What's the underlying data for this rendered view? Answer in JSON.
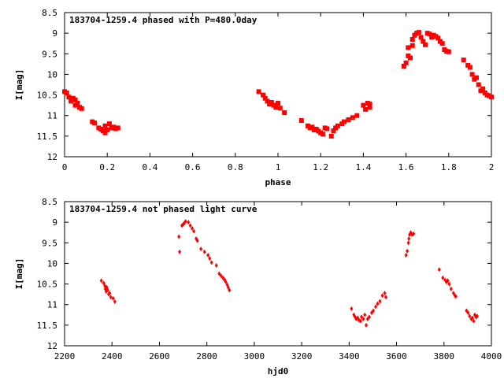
{
  "chart_data": [
    {
      "type": "scatter",
      "title": "183704-1259.4 phased with P=480.0day",
      "xlabel": "phase",
      "ylabel": "I[mag]",
      "xlim": [
        0,
        2
      ],
      "ylim": [
        8.5,
        12
      ],
      "y_inverted": true,
      "grid": false,
      "x_ticks": [
        0,
        0.2,
        0.4,
        0.6,
        0.8,
        1,
        1.2,
        1.4,
        1.6,
        1.8,
        2
      ],
      "x_tick_labels": [
        "0",
        "0.2",
        "0.4",
        "0.6",
        "0.8",
        "1",
        "1.2",
        "1.4",
        "1.6",
        "1.8",
        "2"
      ],
      "y_ticks": [
        8.5,
        9,
        9.5,
        10,
        10.5,
        11,
        11.5,
        12
      ],
      "y_tick_labels": [
        "8.5",
        "9",
        "9.5",
        "10",
        "10.5",
        "11",
        "11.5",
        "12"
      ],
      "marker_color": "#ff0000",
      "points": [
        [
          0.0,
          10.42
        ],
        [
          0.01,
          10.45
        ],
        [
          0.02,
          10.55
        ],
        [
          0.03,
          10.6
        ],
        [
          0.03,
          10.65
        ],
        [
          0.04,
          10.58
        ],
        [
          0.05,
          10.75
        ],
        [
          0.05,
          10.62
        ],
        [
          0.06,
          10.7
        ],
        [
          0.07,
          10.8
        ],
        [
          0.08,
          10.83
        ],
        [
          0.13,
          11.15
        ],
        [
          0.14,
          11.18
        ],
        [
          0.16,
          11.3
        ],
        [
          0.17,
          11.33
        ],
        [
          0.18,
          11.37
        ],
        [
          0.19,
          11.42
        ],
        [
          0.19,
          11.25
        ],
        [
          0.2,
          11.35
        ],
        [
          0.21,
          11.2
        ],
        [
          0.22,
          11.3
        ],
        [
          0.23,
          11.28
        ],
        [
          0.24,
          11.32
        ],
        [
          0.25,
          11.3
        ],
        [
          0.91,
          10.42
        ],
        [
          0.93,
          10.5
        ],
        [
          0.94,
          10.58
        ],
        [
          0.95,
          10.65
        ],
        [
          0.96,
          10.72
        ],
        [
          0.97,
          10.68
        ],
        [
          0.98,
          10.75
        ],
        [
          0.99,
          10.8
        ],
        [
          1.0,
          10.7
        ],
        [
          1.01,
          10.82
        ],
        [
          1.03,
          10.93
        ],
        [
          1.11,
          11.12
        ],
        [
          1.14,
          11.25
        ],
        [
          1.15,
          11.3
        ],
        [
          1.16,
          11.28
        ],
        [
          1.17,
          11.35
        ],
        [
          1.18,
          11.33
        ],
        [
          1.19,
          11.38
        ],
        [
          1.2,
          11.42
        ],
        [
          1.21,
          11.45
        ],
        [
          1.22,
          11.3
        ],
        [
          1.23,
          11.32
        ],
        [
          1.25,
          11.5
        ],
        [
          1.26,
          11.37
        ],
        [
          1.27,
          11.3
        ],
        [
          1.28,
          11.25
        ],
        [
          1.3,
          11.2
        ],
        [
          1.31,
          11.15
        ],
        [
          1.33,
          11.1
        ],
        [
          1.35,
          11.05
        ],
        [
          1.37,
          11.0
        ],
        [
          1.4,
          10.75
        ],
        [
          1.41,
          10.85
        ],
        [
          1.42,
          10.7
        ],
        [
          1.43,
          10.8
        ],
        [
          1.43,
          10.72
        ],
        [
          1.59,
          9.8
        ],
        [
          1.6,
          9.72
        ],
        [
          1.61,
          9.35
        ],
        [
          1.61,
          9.55
        ],
        [
          1.62,
          9.6
        ],
        [
          1.63,
          9.15
        ],
        [
          1.63,
          9.3
        ],
        [
          1.64,
          9.05
        ],
        [
          1.65,
          9.0
        ],
        [
          1.66,
          8.98
        ],
        [
          1.67,
          9.1
        ],
        [
          1.68,
          9.2
        ],
        [
          1.69,
          9.28
        ],
        [
          1.7,
          9.0
        ],
        [
          1.71,
          9.02
        ],
        [
          1.72,
          9.1
        ],
        [
          1.73,
          9.05
        ],
        [
          1.74,
          9.08
        ],
        [
          1.75,
          9.12
        ],
        [
          1.76,
          9.2
        ],
        [
          1.77,
          9.25
        ],
        [
          1.78,
          9.4
        ],
        [
          1.79,
          9.44
        ],
        [
          1.8,
          9.45
        ],
        [
          1.87,
          9.65
        ],
        [
          1.89,
          9.78
        ],
        [
          1.9,
          9.83
        ],
        [
          1.91,
          10.0
        ],
        [
          1.92,
          10.12
        ],
        [
          1.93,
          10.08
        ],
        [
          1.94,
          10.25
        ],
        [
          1.95,
          10.4
        ],
        [
          1.96,
          10.35
        ],
        [
          1.97,
          10.45
        ],
        [
          1.98,
          10.5
        ],
        [
          1.99,
          10.52
        ],
        [
          2.0,
          10.55
        ]
      ]
    },
    {
      "type": "scatter",
      "title": "183704-1259.4 not phased light curve",
      "xlabel": "hjd0",
      "ylabel": "I[mag]",
      "xlim": [
        2200,
        4000
      ],
      "ylim": [
        8.5,
        12
      ],
      "y_inverted": true,
      "grid": false,
      "x_ticks": [
        2200,
        2400,
        2600,
        2800,
        3000,
        3200,
        3400,
        3600,
        3800,
        4000
      ],
      "x_tick_labels": [
        "2200",
        "2400",
        "2600",
        "2800",
        "3000",
        "3200",
        "3400",
        "3600",
        "3800",
        "4000"
      ],
      "y_ticks": [
        8.5,
        9,
        9.5,
        10,
        10.5,
        11,
        11.5,
        12
      ],
      "y_tick_labels": [
        "8.5",
        "9",
        "9.5",
        "10",
        "10.5",
        "11",
        "11.5",
        "12"
      ],
      "marker_color": "#ff0000",
      "points": [
        [
          2355,
          10.42
        ],
        [
          2365,
          10.48
        ],
        [
          2370,
          10.55
        ],
        [
          2372,
          10.62
        ],
        [
          2375,
          10.68
        ],
        [
          2378,
          10.58
        ],
        [
          2382,
          10.65
        ],
        [
          2386,
          10.75
        ],
        [
          2390,
          10.72
        ],
        [
          2395,
          10.82
        ],
        [
          2405,
          10.85
        ],
        [
          2412,
          10.93
        ],
        [
          2682,
          9.35
        ],
        [
          2685,
          9.72
        ],
        [
          2695,
          9.08
        ],
        [
          2700,
          9.05
        ],
        [
          2705,
          9.02
        ],
        [
          2710,
          8.98
        ],
        [
          2722,
          9.0
        ],
        [
          2730,
          9.08
        ],
        [
          2738,
          9.15
        ],
        [
          2745,
          9.22
        ],
        [
          2755,
          9.4
        ],
        [
          2760,
          9.45
        ],
        [
          2775,
          9.65
        ],
        [
          2790,
          9.72
        ],
        [
          2805,
          9.8
        ],
        [
          2812,
          9.88
        ],
        [
          2820,
          9.98
        ],
        [
          2840,
          10.05
        ],
        [
          2852,
          10.25
        ],
        [
          2860,
          10.3
        ],
        [
          2868,
          10.35
        ],
        [
          2875,
          10.4
        ],
        [
          2880,
          10.45
        ],
        [
          2886,
          10.52
        ],
        [
          2890,
          10.58
        ],
        [
          2895,
          10.65
        ],
        [
          3410,
          11.1
        ],
        [
          3420,
          11.25
        ],
        [
          3425,
          11.3
        ],
        [
          3430,
          11.35
        ],
        [
          3436,
          11.32
        ],
        [
          3442,
          11.38
        ],
        [
          3448,
          11.4
        ],
        [
          3452,
          11.3
        ],
        [
          3460,
          11.35
        ],
        [
          3466,
          11.25
        ],
        [
          3472,
          11.5
        ],
        [
          3478,
          11.35
        ],
        [
          3485,
          11.3
        ],
        [
          3495,
          11.2
        ],
        [
          3502,
          11.15
        ],
        [
          3512,
          11.05
        ],
        [
          3520,
          10.98
        ],
        [
          3530,
          10.92
        ],
        [
          3540,
          10.78
        ],
        [
          3550,
          10.72
        ],
        [
          3555,
          10.82
        ],
        [
          3640,
          9.8
        ],
        [
          3645,
          9.7
        ],
        [
          3650,
          9.5
        ],
        [
          3652,
          9.4
        ],
        [
          3655,
          9.3
        ],
        [
          3660,
          9.25
        ],
        [
          3665,
          9.3
        ],
        [
          3672,
          9.28
        ],
        [
          3780,
          10.15
        ],
        [
          3795,
          10.35
        ],
        [
          3805,
          10.4
        ],
        [
          3810,
          10.45
        ],
        [
          3816,
          10.42
        ],
        [
          3822,
          10.5
        ],
        [
          3830,
          10.62
        ],
        [
          3840,
          10.72
        ],
        [
          3846,
          10.78
        ],
        [
          3850,
          10.8
        ],
        [
          3895,
          11.15
        ],
        [
          3902,
          11.2
        ],
        [
          3908,
          11.28
        ],
        [
          3915,
          11.35
        ],
        [
          3920,
          11.32
        ],
        [
          3925,
          11.4
        ],
        [
          3930,
          11.25
        ],
        [
          3935,
          11.3
        ],
        [
          3940,
          11.28
        ]
      ]
    }
  ]
}
